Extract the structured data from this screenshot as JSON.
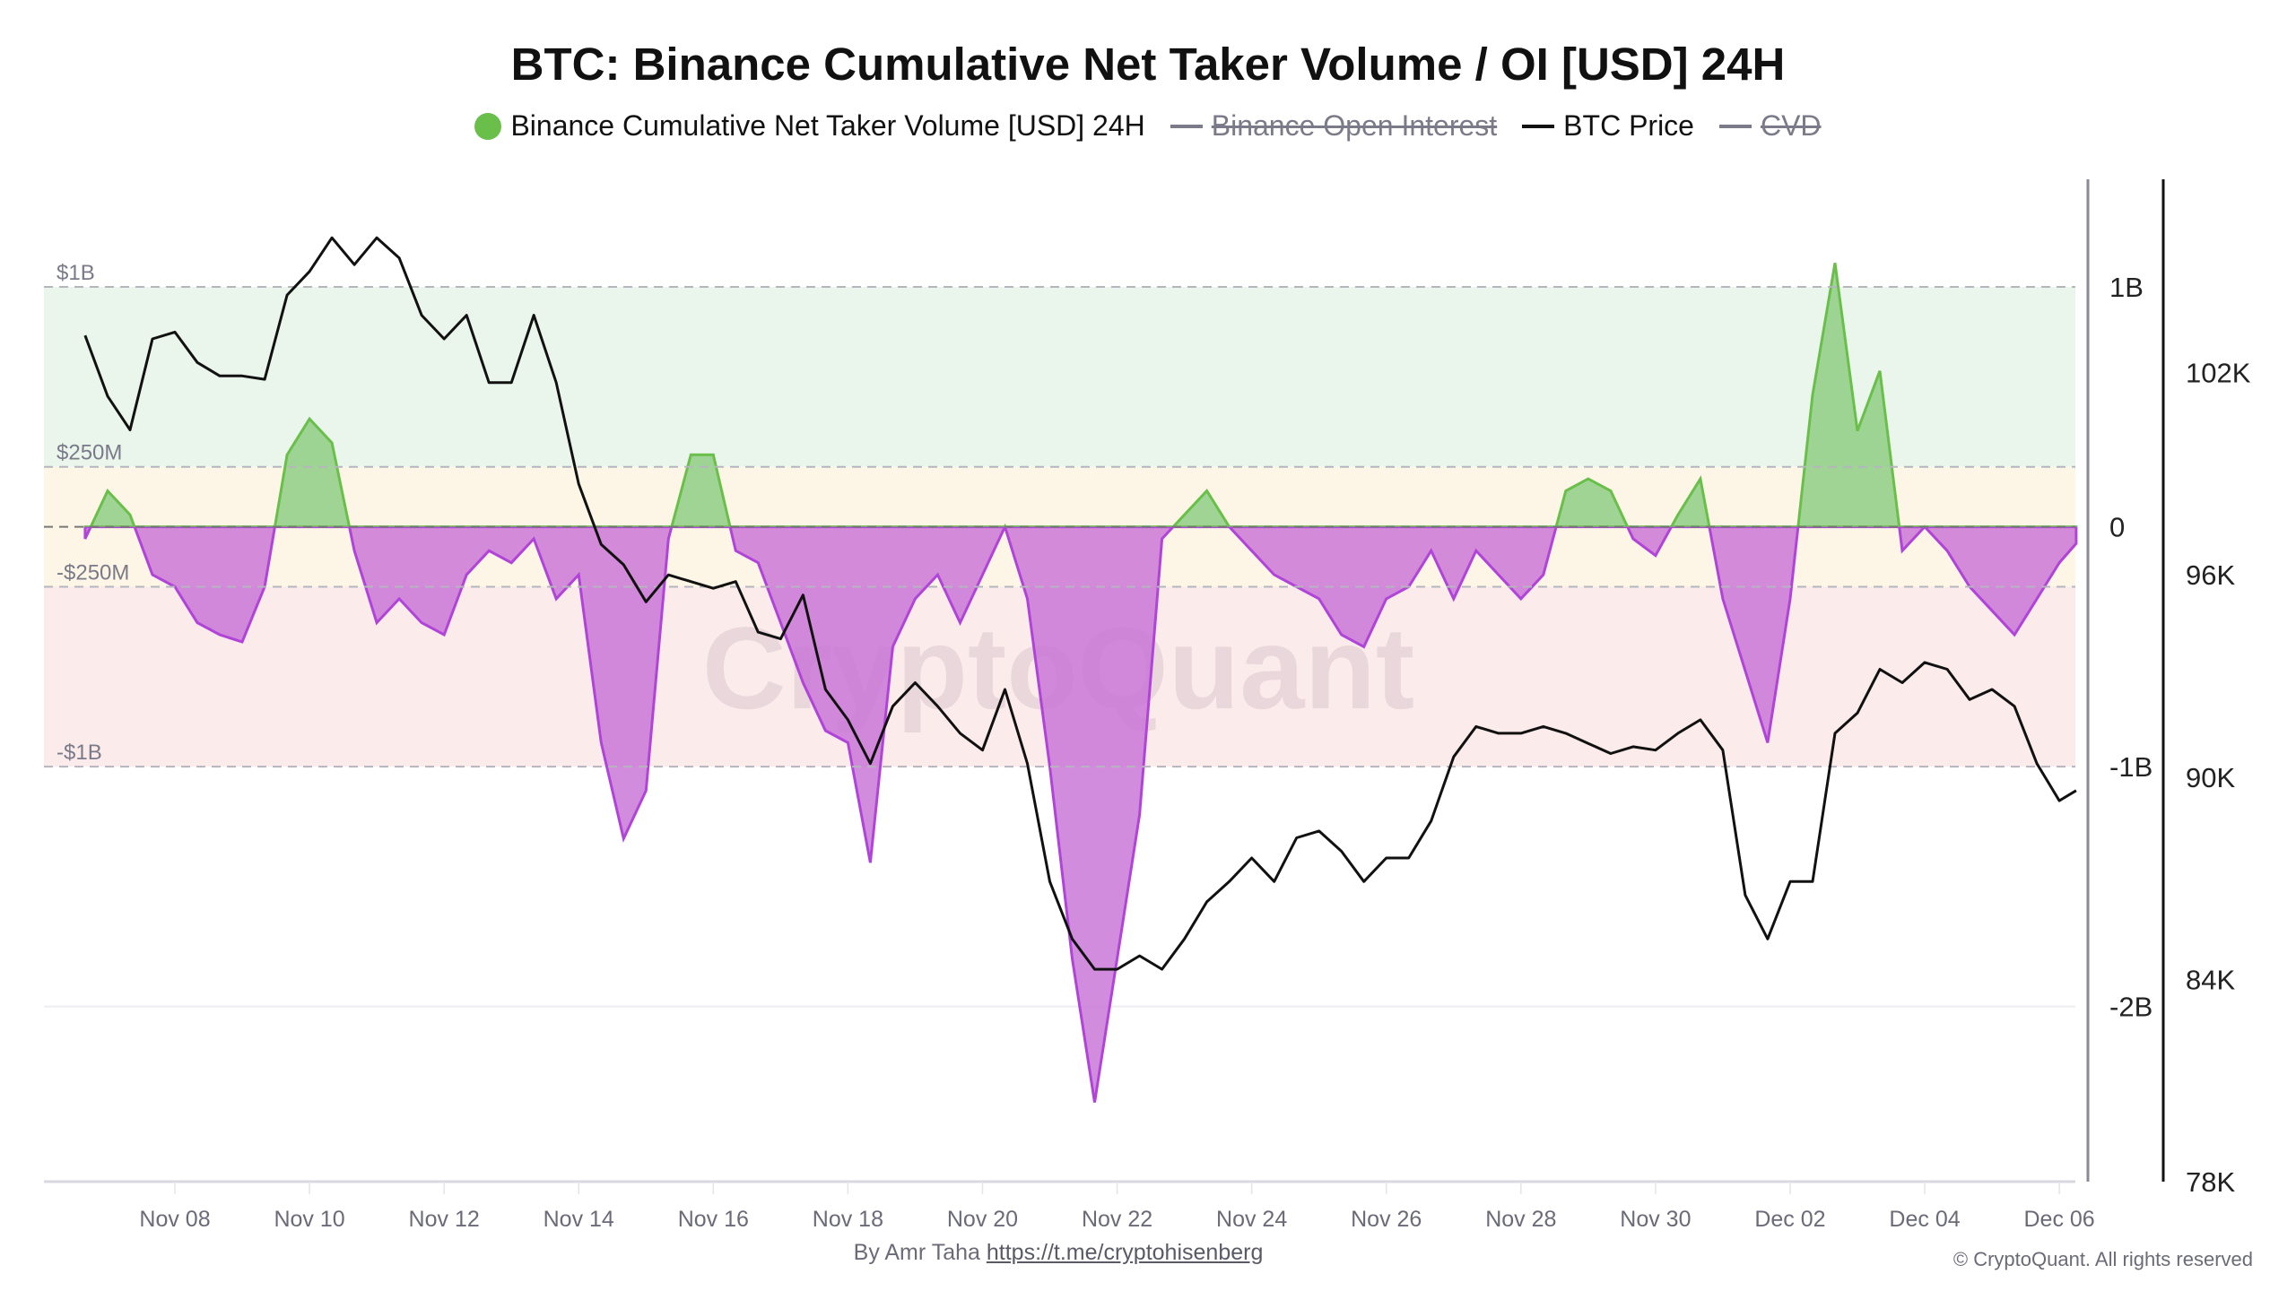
{
  "chart_data": {
    "type": "area",
    "title": "BTC: Binance Cumulative Net Taker Volume / OI [USD] 24H",
    "legend": [
      {
        "name": "Binance Cumulative Net Taker Volume [USD] 24H",
        "color": "#6abf4b",
        "visible": true
      },
      {
        "name": "Binance Open Interest",
        "color": "#7a7a88",
        "visible": false
      },
      {
        "name": "BTC Price",
        "color": "#111111",
        "visible": true
      },
      {
        "name": "CVD",
        "color": "#7a7a88",
        "visible": false
      }
    ],
    "legend_position": "top",
    "x_ticks": [
      "Nov 08",
      "Nov 10",
      "Nov 12",
      "Nov 14",
      "Nov 16",
      "Nov 18",
      "Nov 20",
      "Nov 22",
      "Nov 24",
      "Nov 26",
      "Nov 28",
      "Nov 30",
      "Dec 02",
      "Dec 04",
      "Dec 06"
    ],
    "x_tick_dates": [
      "2024-11-08",
      "2024-11-10",
      "2024-11-12",
      "2024-11-14",
      "2024-11-16",
      "2024-11-18",
      "2024-11-20",
      "2024-11-22",
      "2024-11-24",
      "2024-11-26",
      "2024-11-28",
      "2024-11-30",
      "2024-12-02",
      "2024-12-04",
      "2024-12-06"
    ],
    "xlim": [
      "2024-11-06T08:00",
      "2024-12-06T06:00"
    ],
    "y_left": {
      "label": "",
      "ticks": [
        "1B",
        "0",
        "-1B",
        "-2B"
      ],
      "tick_values": [
        1,
        0,
        -1,
        -2
      ],
      "unit": "B USD",
      "ylim": [
        -2.73,
        1.43
      ]
    },
    "y_right": {
      "label": "",
      "ticks": [
        "102K",
        "96K",
        "90K",
        "84K",
        "78K"
      ],
      "tick_values": [
        102,
        96,
        90,
        84,
        78
      ],
      "unit": "K USD",
      "ylim": [
        78,
        107.6
      ]
    },
    "threshold_bands": [
      {
        "label": "$1B",
        "value": 1
      },
      {
        "label": "$250M",
        "value": 0.25
      },
      {
        "label": "",
        "value": 0
      },
      {
        "label": "-$250M",
        "value": -0.25
      },
      {
        "label": "-$1B",
        "value": -1
      }
    ],
    "band_colors": {
      "upper": "#eaf5ec",
      "middle": "#fdf6e6",
      "lower": "#fbeceb"
    },
    "positive_color": "#6abf4b",
    "negative_color": "#b144d8",
    "grid": false,
    "x": [
      "2024-11-06T16:00",
      "2024-11-07T00:00",
      "2024-11-07T08:00",
      "2024-11-07T16:00",
      "2024-11-08T00:00",
      "2024-11-08T08:00",
      "2024-11-08T16:00",
      "2024-11-09T00:00",
      "2024-11-09T08:00",
      "2024-11-09T16:00",
      "2024-11-10T00:00",
      "2024-11-10T08:00",
      "2024-11-10T16:00",
      "2024-11-11T00:00",
      "2024-11-11T08:00",
      "2024-11-11T16:00",
      "2024-11-12T00:00",
      "2024-11-12T08:00",
      "2024-11-12T16:00",
      "2024-11-13T00:00",
      "2024-11-13T08:00",
      "2024-11-13T16:00",
      "2024-11-14T00:00",
      "2024-11-14T08:00",
      "2024-11-14T16:00",
      "2024-11-15T00:00",
      "2024-11-15T08:00",
      "2024-11-15T16:00",
      "2024-11-16T00:00",
      "2024-11-16T08:00",
      "2024-11-16T16:00",
      "2024-11-17T00:00",
      "2024-11-17T08:00",
      "2024-11-17T16:00",
      "2024-11-18T00:00",
      "2024-11-18T08:00",
      "2024-11-18T16:00",
      "2024-11-19T00:00",
      "2024-11-19T08:00",
      "2024-11-19T16:00",
      "2024-11-20T00:00",
      "2024-11-20T08:00",
      "2024-11-20T16:00",
      "2024-11-21T00:00",
      "2024-11-21T08:00",
      "2024-11-21T16:00",
      "2024-11-22T00:00",
      "2024-11-22T08:00",
      "2024-11-22T16:00",
      "2024-11-23T00:00",
      "2024-11-23T08:00",
      "2024-11-23T16:00",
      "2024-11-24T00:00",
      "2024-11-24T08:00",
      "2024-11-24T16:00",
      "2024-11-25T00:00",
      "2024-11-25T08:00",
      "2024-11-25T16:00",
      "2024-11-26T00:00",
      "2024-11-26T08:00",
      "2024-11-26T16:00",
      "2024-11-27T00:00",
      "2024-11-27T08:00",
      "2024-11-27T16:00",
      "2024-11-28T00:00",
      "2024-11-28T08:00",
      "2024-11-28T16:00",
      "2024-11-29T00:00",
      "2024-11-29T08:00",
      "2024-11-29T16:00",
      "2024-11-30T00:00",
      "2024-11-30T08:00",
      "2024-11-30T16:00",
      "2024-12-01T00:00",
      "2024-12-01T08:00",
      "2024-12-01T16:00",
      "2024-12-02T00:00",
      "2024-12-02T08:00",
      "2024-12-02T16:00",
      "2024-12-03T00:00",
      "2024-12-03T08:00",
      "2024-12-03T16:00",
      "2024-12-04T00:00",
      "2024-12-04T08:00",
      "2024-12-04T16:00",
      "2024-12-05T00:00",
      "2024-12-05T08:00",
      "2024-12-05T16:00",
      "2024-12-06T00:00",
      "2024-12-06T06:00"
    ],
    "series": [
      {
        "name": "Binance Cumulative Net Taker Volume [USD] 24H",
        "axis": "left",
        "unit": "B USD",
        "values": [
          -0.05,
          0.15,
          0.05,
          -0.2,
          -0.25,
          -0.4,
          -0.45,
          -0.48,
          -0.25,
          0.3,
          0.45,
          0.35,
          -0.1,
          -0.4,
          -0.3,
          -0.4,
          -0.45,
          -0.2,
          -0.1,
          -0.15,
          -0.05,
          -0.3,
          -0.2,
          -0.9,
          -1.3,
          -1.1,
          -0.05,
          0.3,
          0.3,
          -0.1,
          -0.15,
          -0.4,
          -0.65,
          -0.85,
          -0.9,
          -1.4,
          -0.5,
          -0.3,
          -0.2,
          -0.4,
          -0.2,
          0.0,
          -0.3,
          -1.0,
          -1.8,
          -2.4,
          -1.8,
          -1.2,
          -0.05,
          0.05,
          0.15,
          0.0,
          -0.1,
          -0.2,
          -0.25,
          -0.3,
          -0.45,
          -0.5,
          -0.3,
          -0.25,
          -0.1,
          -0.3,
          -0.1,
          -0.2,
          -0.3,
          -0.2,
          0.15,
          0.2,
          0.15,
          -0.05,
          -0.12,
          0.05,
          0.2,
          -0.3,
          -0.6,
          -0.9,
          -0.3,
          0.55,
          1.1,
          0.4,
          0.65,
          -0.1,
          0.0,
          -0.1,
          -0.25,
          -0.35,
          -0.45,
          -0.3,
          -0.15,
          -0.07
        ]
      },
      {
        "name": "BTC Price",
        "axis": "right",
        "unit": "K USD",
        "values": [
          103.1,
          101.3,
          100.3,
          103.0,
          103.2,
          102.3,
          101.9,
          101.9,
          101.8,
          104.3,
          105.0,
          106.0,
          105.2,
          106.0,
          105.4,
          103.7,
          103.0,
          103.7,
          101.7,
          101.7,
          103.7,
          101.7,
          98.7,
          96.9,
          96.3,
          95.2,
          96.0,
          95.8,
          95.6,
          95.8,
          94.3,
          94.1,
          95.4,
          92.6,
          91.7,
          90.4,
          92.1,
          92.8,
          92.1,
          91.3,
          90.8,
          92.6,
          90.4,
          86.9,
          85.2,
          84.3,
          84.3,
          84.7,
          84.3,
          85.2,
          86.3,
          86.9,
          87.6,
          86.9,
          88.2,
          88.4,
          87.8,
          86.9,
          87.6,
          87.6,
          88.7,
          90.6,
          91.5,
          91.3,
          91.3,
          91.5,
          91.3,
          91.0,
          90.7,
          90.9,
          90.8,
          91.3,
          91.7,
          90.8,
          86.5,
          85.2,
          86.9,
          86.9,
          91.3,
          91.9,
          93.2,
          92.8,
          93.4,
          93.2,
          92.3,
          92.6,
          92.1,
          90.4,
          89.3,
          89.6
        ]
      }
    ]
  },
  "watermark": "CryptoQuant",
  "footer": {
    "by": "By Amr Taha",
    "link": "https://t.me/cryptohisenberg",
    "copyright": "© CryptoQuant. All rights reserved"
  }
}
